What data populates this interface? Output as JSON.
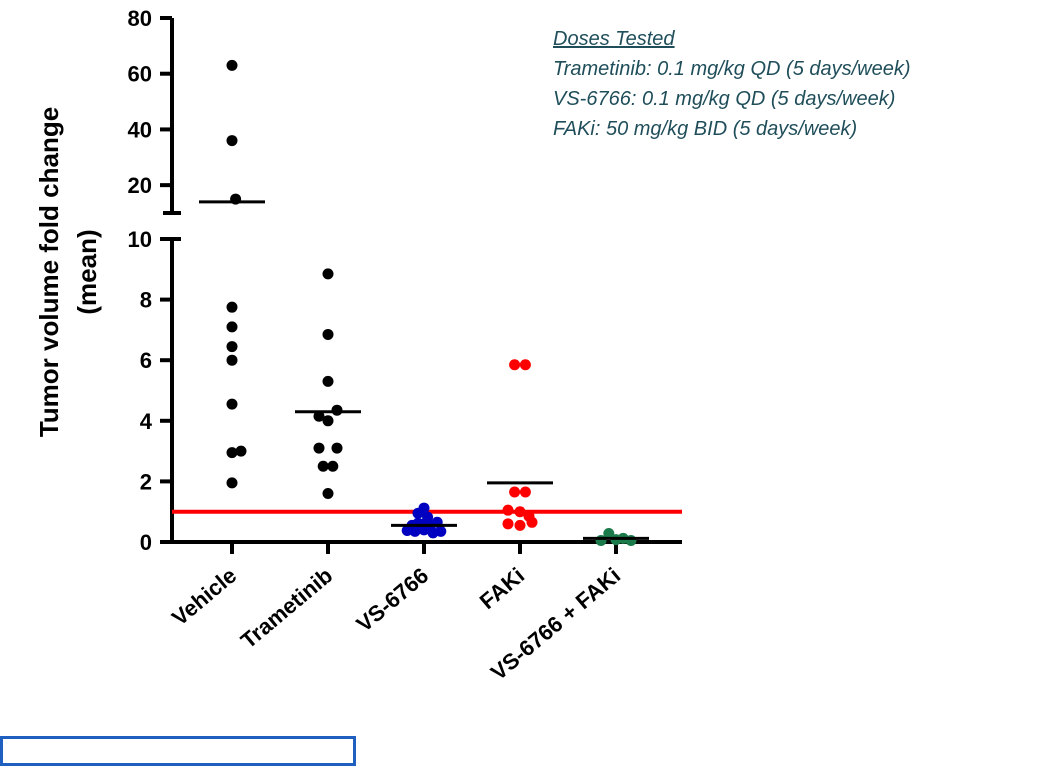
{
  "chart_data": {
    "type": "scatter",
    "ylabel_lines": [
      "Tumor volume fold change",
      "(mean)"
    ],
    "y_axis": {
      "broken": true,
      "lower_segment": {
        "ylim": [
          0,
          10
        ],
        "ticks": [
          "0",
          "2",
          "4",
          "6",
          "8",
          "10"
        ]
      },
      "upper_segment": {
        "ylim": [
          10,
          80
        ],
        "ticks": [
          "20",
          "40",
          "60",
          "80"
        ]
      }
    },
    "categories": [
      "Vehicle",
      "Trametinib",
      "VS-6766",
      "FAKi",
      "VS-6766 + FAKi"
    ],
    "reference_line": {
      "y": 1,
      "color": "#ff0000"
    },
    "series": [
      {
        "category": "Vehicle",
        "color": "#000000",
        "mean": 14,
        "points": [
          [
            0,
            63
          ],
          [
            0,
            36
          ],
          [
            0.06,
            15
          ],
          [
            0,
            7.75
          ],
          [
            0,
            7.1
          ],
          [
            0,
            6.45
          ],
          [
            0,
            6.0
          ],
          [
            0,
            4.55
          ],
          [
            0,
            2.95
          ],
          [
            0.15,
            3.0
          ],
          [
            0,
            1.95
          ]
        ]
      },
      {
        "category": "Trametinib",
        "color": "#000000",
        "mean": 4.3,
        "points": [
          [
            0,
            8.85
          ],
          [
            0,
            6.85
          ],
          [
            0,
            5.3
          ],
          [
            -0.15,
            4.15
          ],
          [
            0.15,
            4.35
          ],
          [
            0,
            4.0
          ],
          [
            -0.15,
            3.1
          ],
          [
            0.15,
            3.1
          ],
          [
            -0.08,
            2.5
          ],
          [
            0.08,
            2.5
          ],
          [
            0,
            1.6
          ]
        ]
      },
      {
        "category": "VS-6766",
        "color": "#0000c0",
        "mean": 0.55,
        "points": [
          [
            -0.1,
            0.95
          ],
          [
            0,
            1.12
          ],
          [
            0.06,
            0.82
          ],
          [
            -0.2,
            0.55
          ],
          [
            -0.1,
            0.62
          ],
          [
            0,
            0.6
          ],
          [
            0.1,
            0.55
          ],
          [
            0.22,
            0.65
          ],
          [
            -0.28,
            0.38
          ],
          [
            -0.15,
            0.35
          ],
          [
            0,
            0.4
          ],
          [
            0.15,
            0.3
          ],
          [
            0.28,
            0.35
          ]
        ]
      },
      {
        "category": "FAKi",
        "color": "#ff0000",
        "mean": 1.95,
        "points": [
          [
            -0.09,
            5.85
          ],
          [
            0.09,
            5.85
          ],
          [
            -0.09,
            1.65
          ],
          [
            0.09,
            1.65
          ],
          [
            -0.2,
            1.05
          ],
          [
            0,
            1.0
          ],
          [
            0.15,
            0.85
          ],
          [
            -0.2,
            0.6
          ],
          [
            0.2,
            0.65
          ],
          [
            0,
            0.55
          ]
        ]
      },
      {
        "category": "VS-6766 + FAKi",
        "color": "#1a7a4a",
        "mean": 0.12,
        "points": [
          [
            -0.25,
            0.05
          ],
          [
            -0.12,
            0.28
          ],
          [
            0,
            0.08
          ],
          [
            0.12,
            0.12
          ],
          [
            0.25,
            0.05
          ]
        ]
      }
    ]
  },
  "legend_note": {
    "heading": "Doses Tested",
    "lines": [
      "Trametinib: 0.1 mg/kg QD (5 days/week)",
      "VS-6766: 0.1 mg/kg QD (5 days/week)",
      "FAKi: 50 mg/kg BID (5 days/week)"
    ]
  }
}
